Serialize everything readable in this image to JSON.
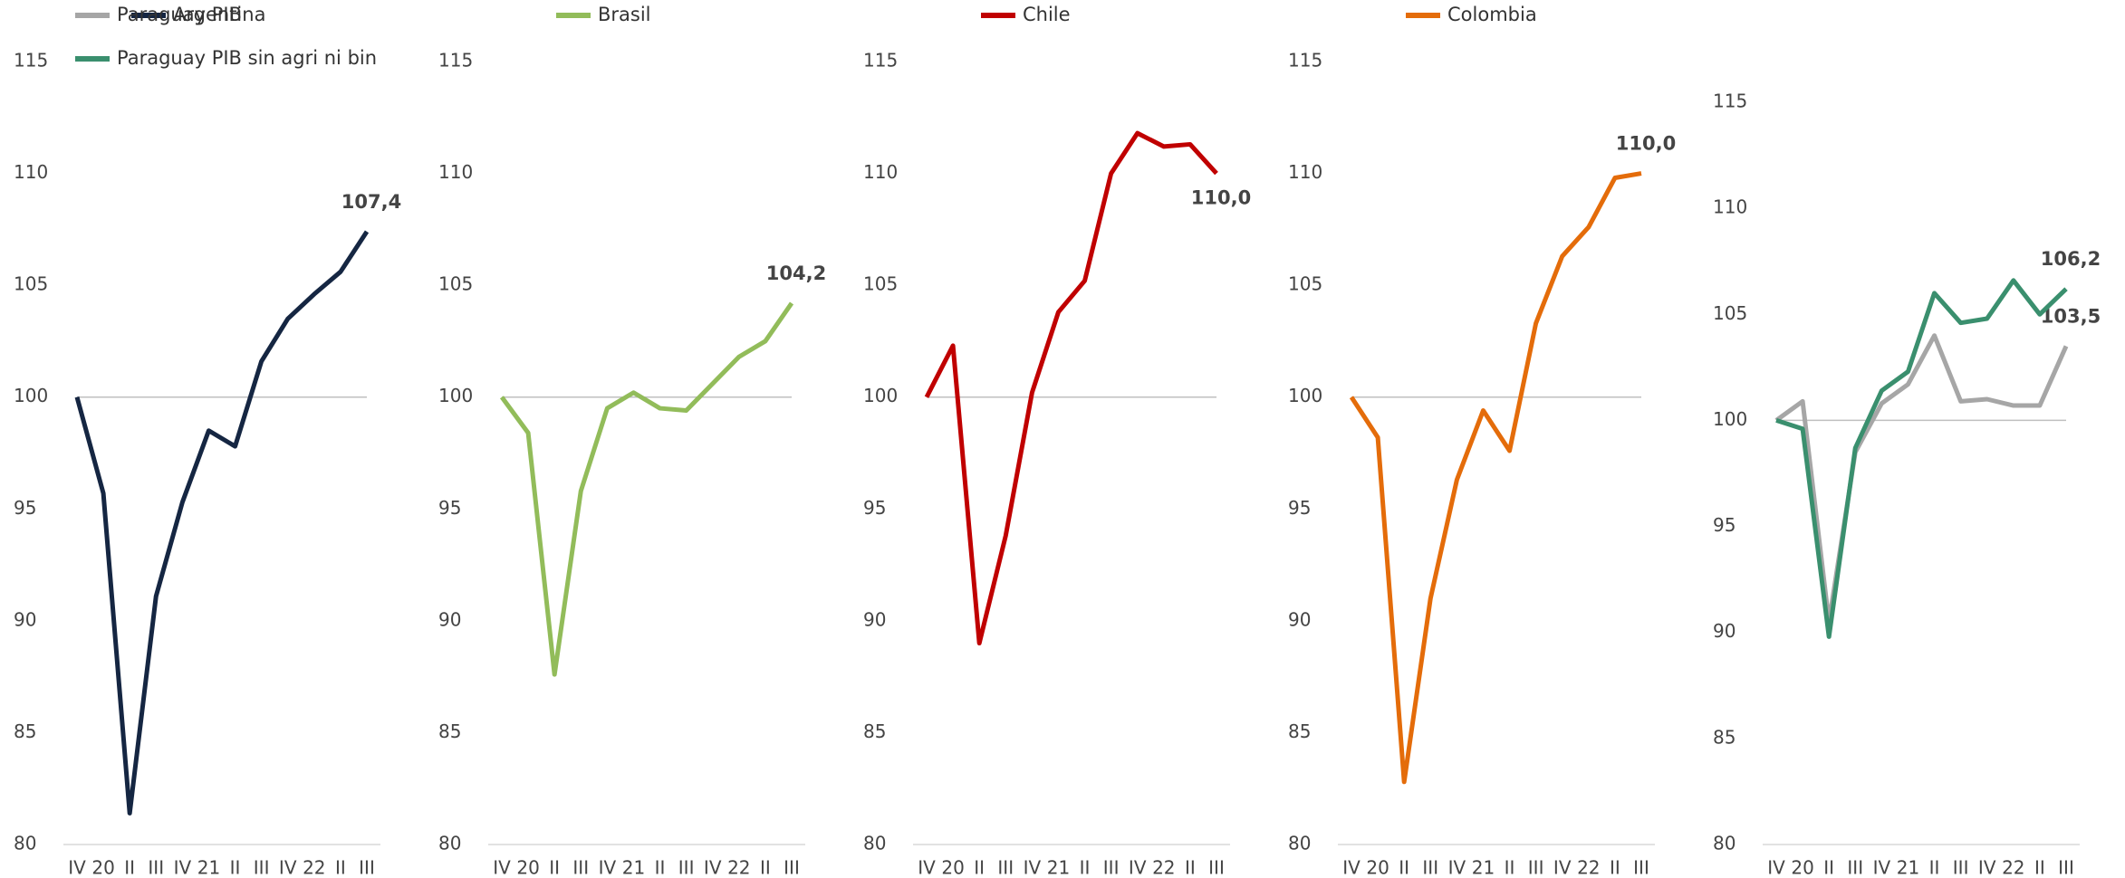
{
  "chart_data": [
    {
      "type": "line",
      "categories": [
        "IV",
        "20",
        "II",
        "III",
        "IV",
        "21",
        "II",
        "III",
        "IV",
        "22",
        "II",
        "III"
      ],
      "ylim": [
        80,
        115
      ],
      "yticks": [
        80,
        85,
        90,
        95,
        100,
        105,
        110,
        115
      ],
      "reference": 100,
      "series": [
        {
          "name": "Argentina",
          "color": "#152642",
          "values": [
            100,
            95.7,
            81.4,
            91.1,
            95.3,
            98.5,
            97.8,
            101.6,
            103.5,
            104.6,
            105.6,
            107.4
          ],
          "value_labels": [
            null,
            null,
            null,
            null,
            null,
            null,
            null,
            null,
            null,
            null,
            null,
            "107,4"
          ]
        }
      ]
    },
    {
      "type": "line",
      "categories": [
        "IV",
        "20",
        "II",
        "III",
        "IV",
        "21",
        "II",
        "III",
        "IV",
        "22",
        "II",
        "III"
      ],
      "ylim": [
        80,
        115
      ],
      "yticks": [
        80,
        85,
        90,
        95,
        100,
        105,
        110,
        115
      ],
      "reference": 100,
      "series": [
        {
          "name": "Brasil",
          "color": "#92bc5a",
          "values": [
            100,
            98.4,
            87.6,
            95.8,
            99.5,
            100.2,
            99.5,
            99.4,
            100.6,
            101.8,
            102.5,
            104.2
          ],
          "value_labels": [
            null,
            null,
            null,
            null,
            null,
            null,
            null,
            null,
            null,
            null,
            null,
            "104,2"
          ]
        }
      ]
    },
    {
      "type": "line",
      "categories": [
        "IV",
        "20",
        "II",
        "III",
        "IV",
        "21",
        "II",
        "III",
        "IV",
        "22",
        "II",
        "III"
      ],
      "ylim": [
        80,
        115
      ],
      "yticks": [
        80,
        85,
        90,
        95,
        100,
        105,
        110,
        115
      ],
      "reference": 100,
      "series": [
        {
          "name": "Chile",
          "color": "#c00000",
          "values": [
            100,
            102.3,
            89.0,
            93.8,
            100.2,
            103.8,
            105.2,
            110.0,
            111.8,
            111.2,
            111.3,
            110.0
          ],
          "value_labels": [
            null,
            null,
            null,
            null,
            null,
            null,
            null,
            null,
            null,
            null,
            null,
            "110,0"
          ]
        }
      ]
    },
    {
      "type": "line",
      "categories": [
        "IV",
        "20",
        "II",
        "III",
        "IV",
        "21",
        "II",
        "III",
        "IV",
        "22",
        "II",
        "III"
      ],
      "ylim": [
        80,
        115
      ],
      "yticks": [
        80,
        85,
        90,
        95,
        100,
        105,
        110,
        115
      ],
      "reference": 100,
      "series": [
        {
          "name": "Colombia",
          "color": "#e46c0a",
          "values": [
            100,
            98.2,
            82.8,
            91.0,
            96.3,
            99.4,
            97.6,
            103.3,
            106.3,
            107.6,
            109.8,
            110.0
          ],
          "value_labels": [
            null,
            null,
            null,
            null,
            null,
            null,
            null,
            null,
            null,
            null,
            null,
            "110,0"
          ]
        }
      ]
    },
    {
      "type": "line",
      "categories": [
        "IV",
        "20",
        "II",
        "III",
        "IV",
        "21",
        "II",
        "III",
        "IV",
        "22",
        "II",
        "III"
      ],
      "ylim": [
        80,
        115
      ],
      "yticks": [
        80,
        85,
        90,
        95,
        100,
        105,
        110,
        115
      ],
      "reference": 100,
      "series": [
        {
          "name": "Paraguay  PIB",
          "color": "#a6a6a6",
          "values": [
            100,
            100.9,
            90.5,
            98.5,
            100.8,
            101.7,
            104.0,
            100.9,
            101.0,
            100.7,
            100.7,
            103.5
          ],
          "value_labels": [
            null,
            null,
            null,
            null,
            null,
            null,
            null,
            null,
            null,
            null,
            null,
            "103,5"
          ]
        },
        {
          "name": "Paraguay  PIB sin agri ni bin",
          "color": "#3a8f6e",
          "values": [
            100,
            99.6,
            89.8,
            98.7,
            101.4,
            102.3,
            106.0,
            104.6,
            104.8,
            106.6,
            105.0,
            106.2
          ],
          "value_labels": [
            null,
            null,
            null,
            null,
            null,
            null,
            null,
            null,
            null,
            null,
            null,
            "106,2"
          ]
        }
      ]
    }
  ]
}
